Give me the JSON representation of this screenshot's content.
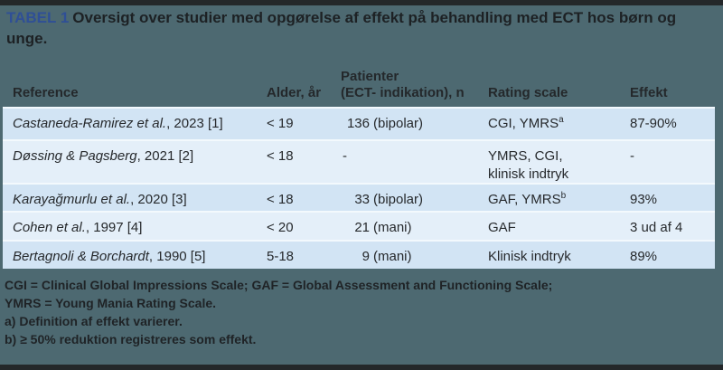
{
  "title": {
    "label": "TABEL 1",
    "text": "Oversigt over studier med opgørelse af effekt på behandling med ECT hos børn og unge."
  },
  "colors": {
    "background_slate": "#4d6971",
    "accent_blue_label": "#2f4f96",
    "row_dark_blue": "#d2e4f4",
    "row_light_blue": "#e4eff9",
    "edge_bar_dark": "#24282a",
    "text_dark": "#26292c"
  },
  "table": {
    "header": {
      "reference": "Reference",
      "age": "Alder, år",
      "patients_line1": "Patienter",
      "patients_line2": "(ECT- indikation), n",
      "rating": "Rating scale",
      "effect": "Effekt"
    },
    "rows": [
      {
        "ref_italic": "Castaneda-Ramirez et al.",
        "ref_rest": ", 2023 [1]",
        "age": "< 19",
        "patients_num": "136",
        "patients_rest": "(bipolar)",
        "rating": "CGI, YMRS",
        "rating_sup": "a",
        "rating_line2": "",
        "effect": "87-90%"
      },
      {
        "ref_italic": "Døssing & Pagsberg",
        "ref_rest": ", 2021 [2]",
        "age": "< 18",
        "patients_num": "",
        "patients_rest": "-",
        "rating": "YMRS, CGI,",
        "rating_sup": "",
        "rating_line2": "klinisk indtryk",
        "effect": "-"
      },
      {
        "ref_italic": "Karayağmurlu et al.",
        "ref_rest": ", 2020 [3]",
        "age": "< 18",
        "patients_num": "33",
        "patients_rest": "(bipolar)",
        "rating": "GAF, YMRS",
        "rating_sup": "b",
        "rating_line2": "",
        "effect": "93%"
      },
      {
        "ref_italic": "Cohen et al.",
        "ref_rest": ", 1997 [4]",
        "age": "< 20",
        "patients_num": "21",
        "patients_rest": "(mani)",
        "rating": "GAF",
        "rating_sup": "",
        "rating_line2": "",
        "effect": "3 ud af 4"
      },
      {
        "ref_italic": "Bertagnoli & Borchardt",
        "ref_rest": ", 1990 [5]",
        "age": "5-18",
        "patients_num": "9",
        "patients_rest": "(mani)",
        "rating": "Klinisk indtryk",
        "rating_sup": "",
        "rating_line2": "",
        "effect": "89%"
      }
    ]
  },
  "footnotes": [
    "CGI = Clinical Global Impressions Scale; GAF = Global Assessment and Functioning Scale;",
    "YMRS = Young Mania Rating Scale.",
    "a) Definition af effekt varierer.",
    "b) ≥ 50% reduktion registreres som effekt."
  ]
}
